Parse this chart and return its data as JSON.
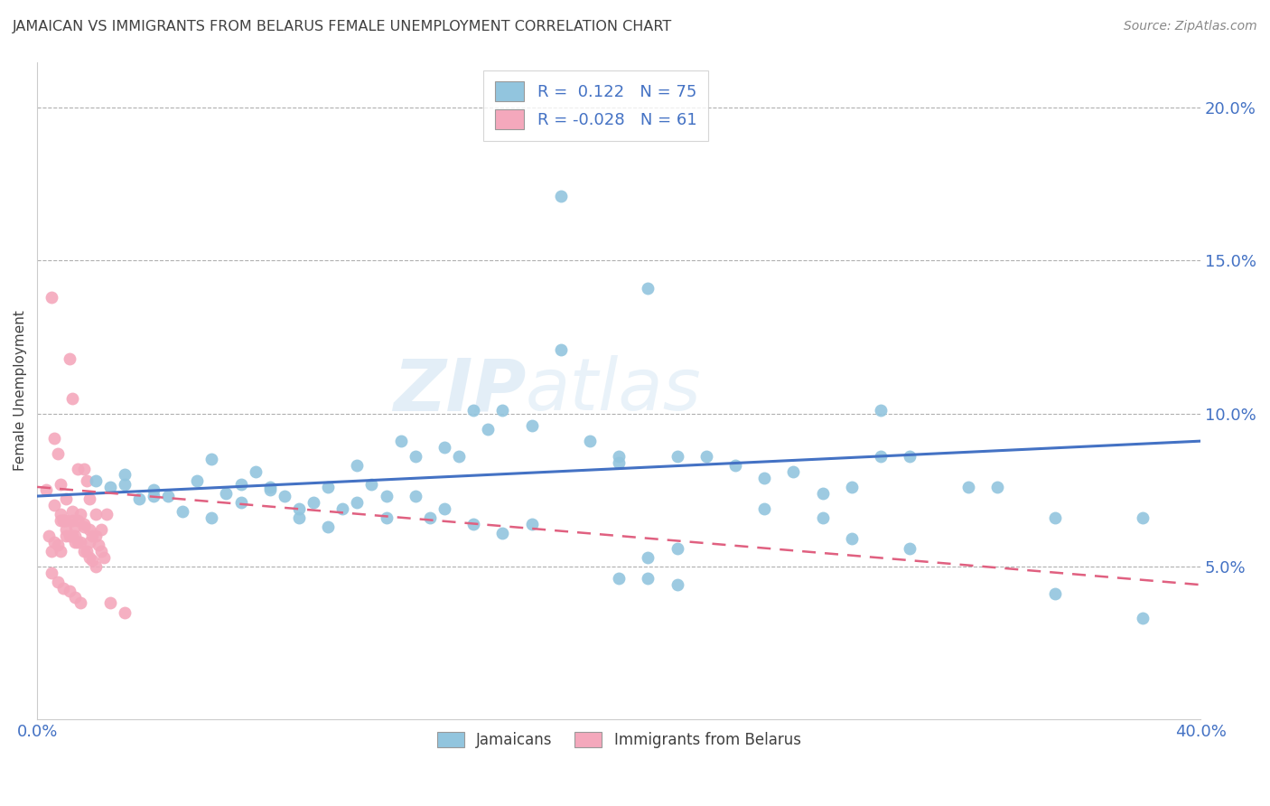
{
  "title": "JAMAICAN VS IMMIGRANTS FROM BELARUS FEMALE UNEMPLOYMENT CORRELATION CHART",
  "source": "Source: ZipAtlas.com",
  "ylabel": "Female Unemployment",
  "ytick_labels": [
    "20.0%",
    "15.0%",
    "10.0%",
    "5.0%"
  ],
  "ytick_values": [
    0.2,
    0.15,
    0.1,
    0.05
  ],
  "xlim": [
    0.0,
    0.4
  ],
  "ylim": [
    0.0,
    0.215
  ],
  "legend_blue_r": "R =  0.122",
  "legend_blue_n": "N = 75",
  "legend_pink_r": "R = -0.028",
  "legend_pink_n": "N = 61",
  "blue_color": "#92c5de",
  "pink_color": "#f4a8bc",
  "blue_line_color": "#4472c4",
  "pink_line_color": "#e06080",
  "title_color": "#404040",
  "axis_label_color": "#4472c4",
  "grid_color": "#b0b0b0",
  "watermark_color": "#c8dff0",
  "blue_scatter_x": [
    0.02,
    0.025,
    0.03,
    0.035,
    0.04,
    0.045,
    0.05,
    0.055,
    0.06,
    0.065,
    0.07,
    0.075,
    0.08,
    0.085,
    0.09,
    0.095,
    0.1,
    0.105,
    0.11,
    0.115,
    0.12,
    0.125,
    0.13,
    0.135,
    0.14,
    0.145,
    0.15,
    0.155,
    0.16,
    0.17,
    0.18,
    0.19,
    0.2,
    0.21,
    0.22,
    0.23,
    0.24,
    0.25,
    0.26,
    0.27,
    0.28,
    0.29,
    0.3,
    0.32,
    0.35,
    0.38,
    0.03,
    0.04,
    0.06,
    0.07,
    0.08,
    0.09,
    0.1,
    0.11,
    0.12,
    0.13,
    0.14,
    0.15,
    0.16,
    0.17,
    0.18,
    0.2,
    0.21,
    0.22,
    0.25,
    0.27,
    0.29,
    0.3,
    0.33,
    0.35,
    0.38,
    0.2,
    0.21,
    0.22,
    0.28
  ],
  "blue_scatter_y": [
    0.078,
    0.076,
    0.08,
    0.072,
    0.075,
    0.073,
    0.068,
    0.078,
    0.085,
    0.074,
    0.077,
    0.081,
    0.075,
    0.073,
    0.066,
    0.071,
    0.076,
    0.069,
    0.083,
    0.077,
    0.073,
    0.091,
    0.086,
    0.066,
    0.089,
    0.086,
    0.101,
    0.095,
    0.101,
    0.096,
    0.121,
    0.091,
    0.086,
    0.141,
    0.086,
    0.086,
    0.083,
    0.079,
    0.081,
    0.066,
    0.076,
    0.101,
    0.086,
    0.076,
    0.066,
    0.033,
    0.077,
    0.073,
    0.066,
    0.071,
    0.076,
    0.069,
    0.063,
    0.071,
    0.066,
    0.073,
    0.069,
    0.064,
    0.061,
    0.064,
    0.171,
    0.084,
    0.053,
    0.056,
    0.069,
    0.074,
    0.086,
    0.056,
    0.076,
    0.041,
    0.066,
    0.046,
    0.046,
    0.044,
    0.059
  ],
  "pink_scatter_x": [
    0.003,
    0.005,
    0.006,
    0.007,
    0.008,
    0.008,
    0.009,
    0.01,
    0.01,
    0.011,
    0.012,
    0.012,
    0.013,
    0.013,
    0.014,
    0.015,
    0.016,
    0.016,
    0.017,
    0.018,
    0.018,
    0.019,
    0.02,
    0.021,
    0.022,
    0.023,
    0.024,
    0.004,
    0.005,
    0.006,
    0.007,
    0.008,
    0.009,
    0.01,
    0.011,
    0.012,
    0.013,
    0.014,
    0.015,
    0.016,
    0.017,
    0.018,
    0.019,
    0.02,
    0.006,
    0.008,
    0.01,
    0.012,
    0.014,
    0.016,
    0.018,
    0.02,
    0.022,
    0.005,
    0.007,
    0.009,
    0.011,
    0.013,
    0.015,
    0.025,
    0.03
  ],
  "pink_scatter_y": [
    0.075,
    0.138,
    0.092,
    0.087,
    0.077,
    0.067,
    0.065,
    0.062,
    0.06,
    0.118,
    0.105,
    0.06,
    0.063,
    0.058,
    0.082,
    0.067,
    0.082,
    0.064,
    0.078,
    0.062,
    0.072,
    0.06,
    0.067,
    0.057,
    0.062,
    0.053,
    0.067,
    0.06,
    0.055,
    0.058,
    0.057,
    0.055,
    0.065,
    0.065,
    0.06,
    0.065,
    0.06,
    0.058,
    0.058,
    0.055,
    0.055,
    0.053,
    0.052,
    0.05,
    0.07,
    0.065,
    0.072,
    0.068,
    0.065,
    0.063,
    0.058,
    0.06,
    0.055,
    0.048,
    0.045,
    0.043,
    0.042,
    0.04,
    0.038,
    0.038,
    0.035
  ],
  "blue_line_x": [
    0.0,
    0.4
  ],
  "blue_line_y": [
    0.073,
    0.091
  ],
  "pink_line_x": [
    0.0,
    0.4
  ],
  "pink_line_y": [
    0.076,
    0.044
  ],
  "background_color": "#ffffff"
}
